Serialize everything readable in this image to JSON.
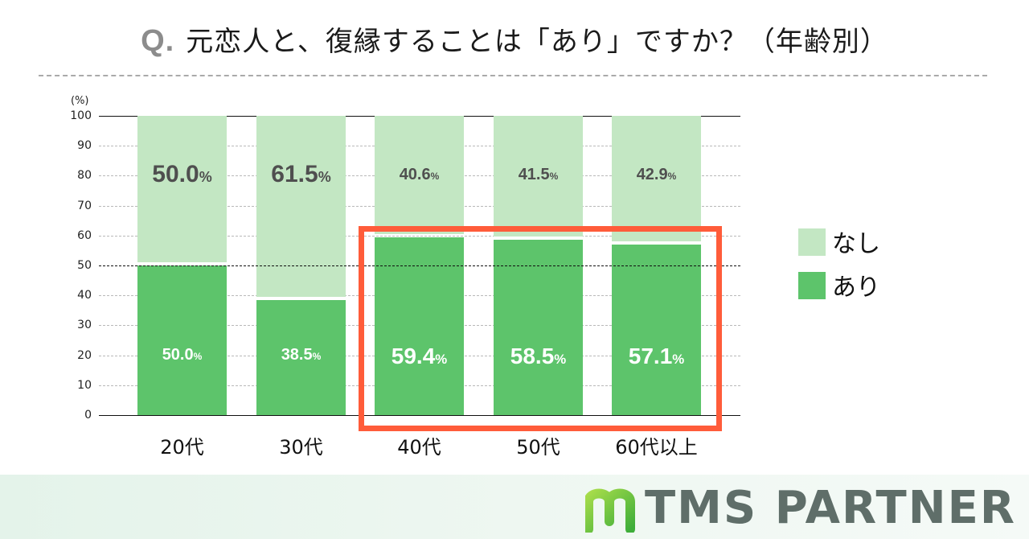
{
  "header": {
    "q_prefix": "Q.",
    "title": "元恋人と、復縁することは「あり」ですか？（年齢別）"
  },
  "axis": {
    "unit": "(%)",
    "ticks": [
      "100",
      "90",
      "80",
      "70",
      "60",
      "50",
      "40",
      "30",
      "20",
      "10",
      "0"
    ]
  },
  "bars": [
    {
      "category": "20代",
      "nashi": "50.0",
      "ari": "50.0",
      "pct": "%"
    },
    {
      "category": "30代",
      "nashi": "61.5",
      "ari": "38.5",
      "pct": "%"
    },
    {
      "category": "40代",
      "nashi": "40.6",
      "ari": "59.4",
      "pct": "%"
    },
    {
      "category": "50代",
      "nashi": "41.5",
      "ari": "58.5",
      "pct": "%"
    },
    {
      "category": "60代以上",
      "nashi": "42.9",
      "ari": "57.1",
      "pct": "%"
    }
  ],
  "legend": [
    {
      "label": "なし",
      "color": "#c3e7c3"
    },
    {
      "label": "あり",
      "color": "#5dc46b"
    }
  ],
  "colors": {
    "nashi": "#c3e7c3",
    "ari": "#5dc46b",
    "highlight": "#ff5c3a",
    "label_dark": "#4f4f4f",
    "logo_text": "#5f6e69",
    "logo_mark": "#6cc43a"
  },
  "branding": {
    "logo_text": "TMS PARTNER"
  },
  "chart_data": {
    "type": "bar",
    "stacked": true,
    "title": "Q. 元恋人と、復縁することは「あり」ですか？（年齢別）",
    "xlabel": "",
    "ylabel": "(%)",
    "ylim": [
      0,
      100
    ],
    "yticks": [
      0,
      10,
      20,
      30,
      40,
      50,
      60,
      70,
      80,
      90,
      100
    ],
    "grid": true,
    "reference_line": 50,
    "categories": [
      "20代",
      "30代",
      "40代",
      "50代",
      "60代以上"
    ],
    "series": [
      {
        "name": "あり",
        "color": "#5dc46b",
        "values": [
          50.0,
          38.5,
          59.4,
          58.5,
          57.1
        ]
      },
      {
        "name": "なし",
        "color": "#c3e7c3",
        "values": [
          50.0,
          61.5,
          40.6,
          41.5,
          42.9
        ]
      }
    ],
    "legend_position": "right",
    "annotations": [
      {
        "type": "highlight-box",
        "categories": [
          "40代",
          "50代",
          "60代以上"
        ],
        "series": "あり",
        "color": "#ff5c3a"
      }
    ]
  }
}
